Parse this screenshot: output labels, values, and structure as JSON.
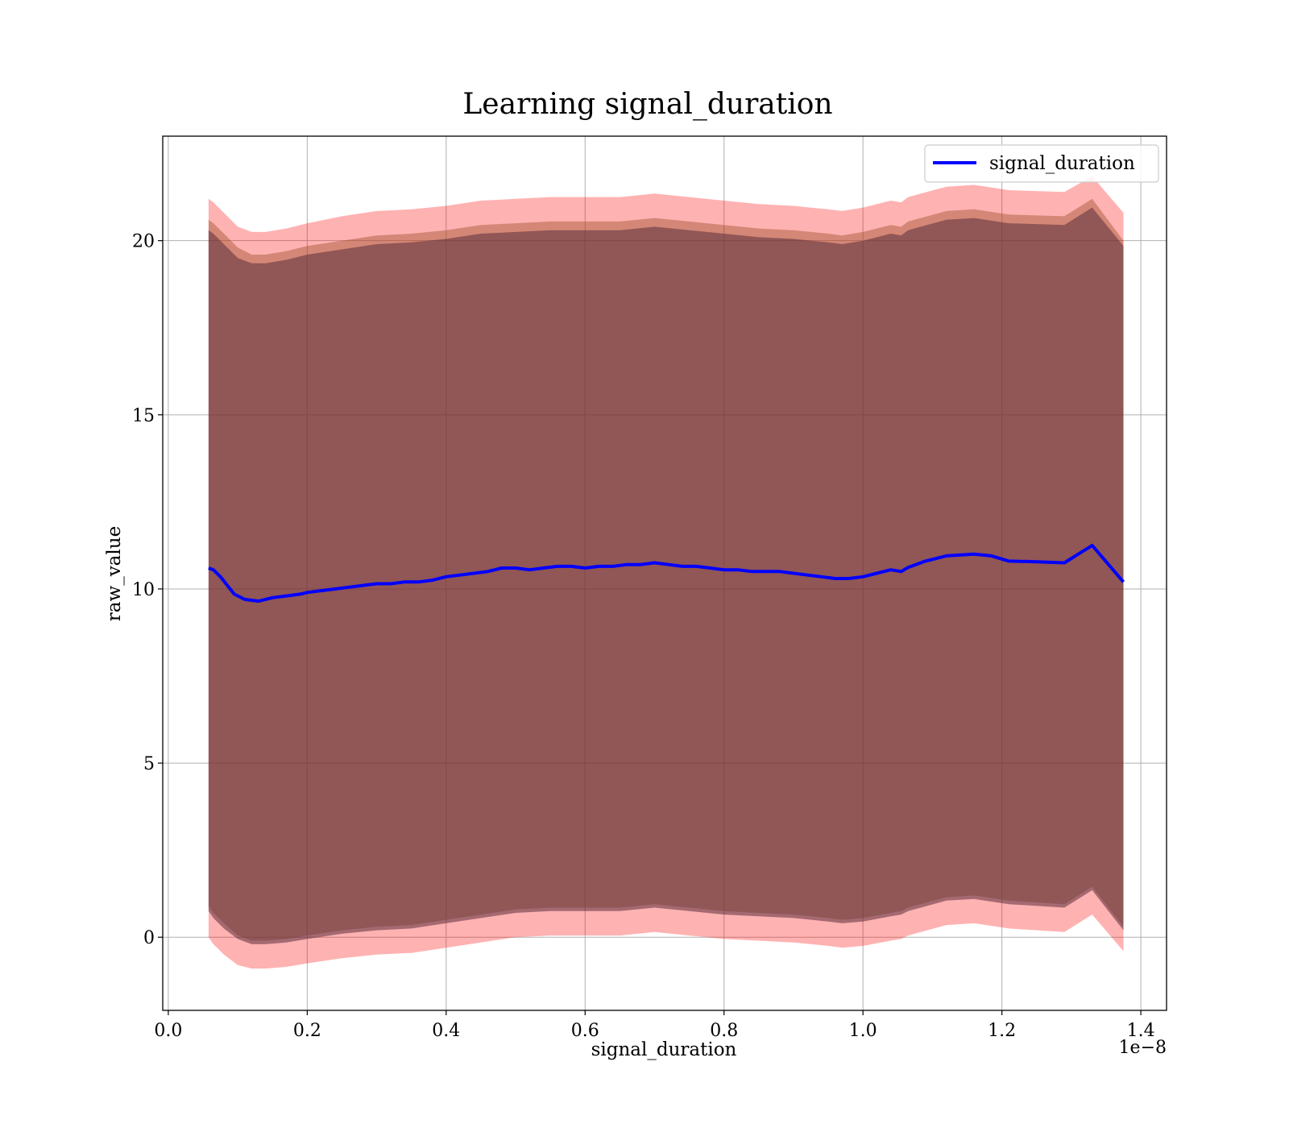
{
  "chart_data": {
    "type": "line",
    "title": "Learning signal_duration",
    "xlabel": "signal_duration",
    "ylabel": "raw_value",
    "x_offset_label": "1e−8",
    "xlim": [
      -0.008,
      1.437
    ],
    "ylim": [
      -2.1,
      23.0
    ],
    "grid": true,
    "legend_position": "upper right",
    "x_ticks": [
      {
        "value": 0.0,
        "label": "0.0"
      },
      {
        "value": 0.2,
        "label": "0.2"
      },
      {
        "value": 0.4,
        "label": "0.4"
      },
      {
        "value": 0.6,
        "label": "0.6"
      },
      {
        "value": 0.8,
        "label": "0.8"
      },
      {
        "value": 1.0,
        "label": "1.0"
      },
      {
        "value": 1.2,
        "label": "1.2"
      },
      {
        "value": 1.4,
        "label": "1.4"
      }
    ],
    "y_ticks": [
      {
        "value": 0,
        "label": "0"
      },
      {
        "value": 5,
        "label": "5"
      },
      {
        "value": 10,
        "label": "10"
      },
      {
        "value": 15,
        "label": "15"
      },
      {
        "value": 20,
        "label": "20"
      }
    ],
    "series": [
      {
        "name": "signal_duration",
        "color": "#0000ff",
        "x": [
          0.058,
          0.065,
          0.075,
          0.085,
          0.095,
          0.11,
          0.13,
          0.15,
          0.17,
          0.19,
          0.2,
          0.22,
          0.24,
          0.26,
          0.28,
          0.3,
          0.32,
          0.34,
          0.36,
          0.38,
          0.4,
          0.42,
          0.44,
          0.46,
          0.48,
          0.5,
          0.52,
          0.54,
          0.56,
          0.58,
          0.6,
          0.62,
          0.64,
          0.66,
          0.68,
          0.7,
          0.72,
          0.74,
          0.76,
          0.78,
          0.8,
          0.82,
          0.84,
          0.86,
          0.88,
          0.9,
          0.92,
          0.94,
          0.96,
          0.98,
          1.0,
          1.02,
          1.04,
          1.055,
          1.065,
          1.09,
          1.12,
          1.16,
          1.185,
          1.21,
          1.25,
          1.29,
          1.33,
          1.375
        ],
        "values": [
          10.6,
          10.55,
          10.35,
          10.1,
          9.85,
          9.7,
          9.65,
          9.75,
          9.8,
          9.85,
          9.9,
          9.95,
          10.0,
          10.05,
          10.1,
          10.15,
          10.15,
          10.2,
          10.2,
          10.25,
          10.35,
          10.4,
          10.45,
          10.5,
          10.6,
          10.6,
          10.55,
          10.6,
          10.65,
          10.65,
          10.6,
          10.65,
          10.65,
          10.7,
          10.7,
          10.75,
          10.7,
          10.65,
          10.65,
          10.6,
          10.55,
          10.55,
          10.5,
          10.5,
          10.5,
          10.45,
          10.4,
          10.35,
          10.3,
          10.3,
          10.35,
          10.45,
          10.55,
          10.5,
          10.62,
          10.8,
          10.95,
          11.0,
          10.95,
          10.8,
          10.78,
          10.75,
          11.25,
          10.2
        ]
      }
    ],
    "bands": [
      {
        "color": "#ff0000",
        "opacity": 0.3,
        "x": [
          0.058,
          0.065,
          0.08,
          0.1,
          0.12,
          0.14,
          0.17,
          0.2,
          0.25,
          0.3,
          0.35,
          0.4,
          0.45,
          0.5,
          0.55,
          0.6,
          0.65,
          0.7,
          0.75,
          0.8,
          0.85,
          0.9,
          0.95,
          0.97,
          1.0,
          1.04,
          1.055,
          1.065,
          1.12,
          1.16,
          1.21,
          1.29,
          1.33,
          1.375
        ],
        "upper": [
          21.2,
          21.1,
          20.8,
          20.4,
          20.25,
          20.25,
          20.35,
          20.5,
          20.7,
          20.85,
          20.9,
          21.0,
          21.15,
          21.2,
          21.25,
          21.25,
          21.25,
          21.35,
          21.25,
          21.15,
          21.05,
          21.0,
          20.9,
          20.85,
          20.95,
          21.15,
          21.1,
          21.25,
          21.55,
          21.6,
          21.45,
          21.4,
          21.85,
          20.8
        ],
        "lower": [
          0.0,
          -0.2,
          -0.5,
          -0.8,
          -0.9,
          -0.9,
          -0.85,
          -0.75,
          -0.6,
          -0.5,
          -0.45,
          -0.3,
          -0.15,
          0.0,
          0.05,
          0.05,
          0.05,
          0.15,
          0.05,
          -0.05,
          -0.1,
          -0.15,
          -0.25,
          -0.3,
          -0.25,
          -0.1,
          -0.05,
          0.05,
          0.35,
          0.4,
          0.25,
          0.15,
          0.65,
          -0.4
        ]
      },
      {
        "color": "#a0522d",
        "opacity": 0.45,
        "x": [
          0.058,
          0.065,
          0.08,
          0.1,
          0.12,
          0.14,
          0.17,
          0.2,
          0.25,
          0.3,
          0.35,
          0.4,
          0.45,
          0.5,
          0.55,
          0.6,
          0.65,
          0.7,
          0.75,
          0.8,
          0.85,
          0.9,
          0.95,
          0.97,
          1.0,
          1.04,
          1.055,
          1.065,
          1.12,
          1.16,
          1.21,
          1.29,
          1.33,
          1.375
        ],
        "upper": [
          20.6,
          20.5,
          20.2,
          19.8,
          19.6,
          19.6,
          19.7,
          19.85,
          20.0,
          20.15,
          20.2,
          20.3,
          20.45,
          20.5,
          20.55,
          20.55,
          20.55,
          20.65,
          20.55,
          20.45,
          20.35,
          20.3,
          20.2,
          20.15,
          20.25,
          20.45,
          20.4,
          20.55,
          20.85,
          20.9,
          20.75,
          20.7,
          21.2,
          20.0
        ],
        "lower": [
          0.9,
          0.7,
          0.4,
          0.05,
          -0.1,
          -0.1,
          -0.05,
          0.05,
          0.2,
          0.3,
          0.35,
          0.5,
          0.65,
          0.8,
          0.85,
          0.85,
          0.85,
          0.95,
          0.85,
          0.75,
          0.7,
          0.65,
          0.55,
          0.5,
          0.55,
          0.7,
          0.75,
          0.85,
          1.15,
          1.2,
          1.05,
          0.95,
          1.45,
          0.3
        ]
      },
      {
        "color": "#5a2d3c",
        "opacity": 0.55,
        "x": [
          0.058,
          0.065,
          0.08,
          0.1,
          0.12,
          0.14,
          0.17,
          0.2,
          0.25,
          0.3,
          0.35,
          0.4,
          0.45,
          0.5,
          0.55,
          0.6,
          0.65,
          0.7,
          0.75,
          0.8,
          0.85,
          0.9,
          0.95,
          0.97,
          1.0,
          1.04,
          1.055,
          1.065,
          1.12,
          1.16,
          1.21,
          1.29,
          1.33,
          1.375
        ],
        "upper": [
          20.3,
          20.2,
          19.9,
          19.5,
          19.35,
          19.35,
          19.45,
          19.6,
          19.75,
          19.9,
          19.95,
          20.05,
          20.2,
          20.25,
          20.3,
          20.3,
          20.3,
          20.4,
          20.3,
          20.2,
          20.1,
          20.05,
          19.95,
          19.9,
          20.0,
          20.2,
          20.15,
          20.3,
          20.6,
          20.65,
          20.5,
          20.45,
          20.95,
          19.85
        ],
        "lower": [
          0.75,
          0.55,
          0.25,
          -0.05,
          -0.2,
          -0.2,
          -0.15,
          -0.05,
          0.1,
          0.2,
          0.25,
          0.4,
          0.55,
          0.7,
          0.75,
          0.75,
          0.75,
          0.85,
          0.75,
          0.65,
          0.6,
          0.55,
          0.45,
          0.4,
          0.45,
          0.6,
          0.65,
          0.75,
          1.05,
          1.1,
          0.95,
          0.85,
          1.35,
          0.2
        ]
      }
    ]
  }
}
